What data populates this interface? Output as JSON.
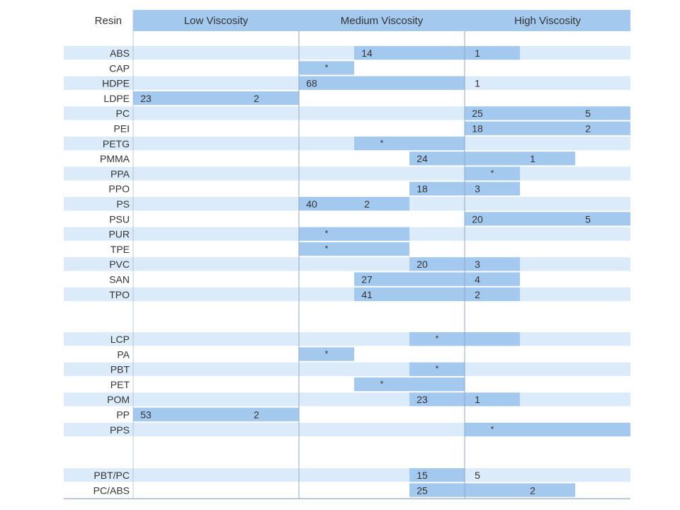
{
  "chart_data": {
    "type": "table",
    "resin_header": "Resin",
    "columns": [
      "Low Viscosity",
      "Medium Viscosity",
      "High Viscosity"
    ],
    "colors": {
      "band": "#dcebf9",
      "bar": "#a4c9ef",
      "header": "#a4c9ef",
      "rule": "#8fa9c4"
    },
    "groups": [
      {
        "rows": [
          {
            "resin": "ABS",
            "start": 4,
            "end": 7,
            "labels": [
              {
                "seg": 4,
                "text": "14"
              },
              {
                "seg": 6,
                "text": "1"
              }
            ]
          },
          {
            "resin": "CAP",
            "start": 3,
            "end": 4,
            "labels": [
              {
                "seg": 3,
                "text": "*"
              }
            ]
          },
          {
            "resin": "HDPE",
            "start": 3,
            "end": 6,
            "labels": [
              {
                "seg": 3,
                "text": "68"
              },
              {
                "seg": 6,
                "text": "1"
              }
            ]
          },
          {
            "resin": "LDPE",
            "start": 0,
            "end": 3,
            "labels": [
              {
                "seg": 0,
                "text": "23"
              },
              {
                "seg": 2,
                "text": "2"
              }
            ]
          },
          {
            "resin": "PC",
            "start": 6,
            "end": 9,
            "labels": [
              {
                "seg": 6,
                "text": "25"
              },
              {
                "seg": 8,
                "text": "5"
              }
            ]
          },
          {
            "resin": "PEI",
            "start": 6,
            "end": 9,
            "labels": [
              {
                "seg": 6,
                "text": "18"
              },
              {
                "seg": 8,
                "text": "2"
              }
            ]
          },
          {
            "resin": "PETG",
            "start": 4,
            "end": 6,
            "labels": [
              {
                "seg": 4,
                "text": "*"
              }
            ]
          },
          {
            "resin": "PMMA",
            "start": 5,
            "end": 8,
            "labels": [
              {
                "seg": 5,
                "text": "24"
              },
              {
                "seg": 7,
                "text": "1"
              }
            ]
          },
          {
            "resin": "PPA",
            "start": 6,
            "end": 7,
            "labels": [
              {
                "seg": 6,
                "text": "*"
              }
            ]
          },
          {
            "resin": "PPO",
            "start": 5,
            "end": 7,
            "labels": [
              {
                "seg": 5,
                "text": "18"
              },
              {
                "seg": 6,
                "text": "3"
              }
            ]
          },
          {
            "resin": "PS",
            "start": 3,
            "end": 5,
            "labels": [
              {
                "seg": 3,
                "text": "40"
              },
              {
                "seg": 4,
                "text": "2"
              }
            ]
          },
          {
            "resin": "PSU",
            "start": 6,
            "end": 9,
            "labels": [
              {
                "seg": 6,
                "text": "20"
              },
              {
                "seg": 8,
                "text": "5"
              }
            ]
          },
          {
            "resin": "PUR",
            "start": 3,
            "end": 5,
            "labels": [
              {
                "seg": 3,
                "text": "*"
              }
            ]
          },
          {
            "resin": "TPE",
            "start": 3,
            "end": 5,
            "labels": [
              {
                "seg": 3,
                "text": "*"
              }
            ]
          },
          {
            "resin": "PVC",
            "start": 5,
            "end": 7,
            "labels": [
              {
                "seg": 5,
                "text": "20"
              },
              {
                "seg": 6,
                "text": "3"
              }
            ]
          },
          {
            "resin": "SAN",
            "start": 4,
            "end": 7,
            "labels": [
              {
                "seg": 4,
                "text": "27"
              },
              {
                "seg": 6,
                "text": "4"
              }
            ]
          },
          {
            "resin": "TPO",
            "start": 4,
            "end": 7,
            "labels": [
              {
                "seg": 4,
                "text": "41"
              },
              {
                "seg": 6,
                "text": "2"
              }
            ]
          }
        ]
      },
      {
        "rows": [
          {
            "resin": "LCP",
            "start": 5,
            "end": 7,
            "labels": [
              {
                "seg": 5,
                "text": "*"
              }
            ]
          },
          {
            "resin": "PA",
            "start": 3,
            "end": 4,
            "labels": [
              {
                "seg": 3,
                "text": "*"
              }
            ]
          },
          {
            "resin": "PBT",
            "start": 5,
            "end": 6,
            "labels": [
              {
                "seg": 5,
                "text": "*"
              }
            ]
          },
          {
            "resin": "PET",
            "start": 4,
            "end": 6,
            "labels": [
              {
                "seg": 4,
                "text": "*"
              }
            ]
          },
          {
            "resin": "POM",
            "start": 5,
            "end": 7,
            "labels": [
              {
                "seg": 5,
                "text": "23"
              },
              {
                "seg": 6,
                "text": "1"
              }
            ]
          },
          {
            "resin": "PP",
            "start": 0,
            "end": 3,
            "labels": [
              {
                "seg": 0,
                "text": "53"
              },
              {
                "seg": 2,
                "text": "2"
              }
            ]
          },
          {
            "resin": "PPS",
            "start": 6,
            "end": 9,
            "labels": [
              {
                "seg": 6,
                "text": "*"
              }
            ]
          }
        ]
      },
      {
        "rows": [
          {
            "resin": "PBT/PC",
            "start": 5,
            "end": 6,
            "labels": [
              {
                "seg": 5,
                "text": "15"
              },
              {
                "seg": 6,
                "text": "5"
              }
            ]
          },
          {
            "resin": "PC/ABS",
            "start": 5,
            "end": 8,
            "labels": [
              {
                "seg": 5,
                "text": "25"
              },
              {
                "seg": 7,
                "text": "2"
              }
            ]
          }
        ]
      }
    ]
  }
}
